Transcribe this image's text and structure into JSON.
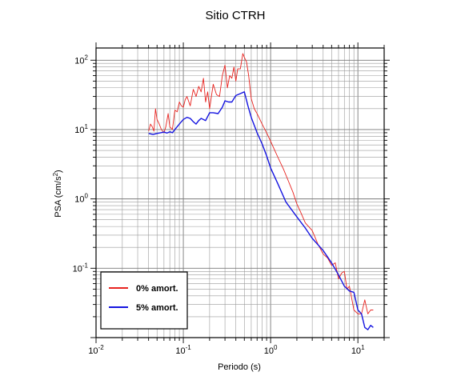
{
  "chart_data": {
    "type": "line",
    "title": "Sitio CTRH",
    "xlabel": "Periodo (s)",
    "ylabel_base": "PSA (cm/s",
    "ylabel_exp": "2",
    "ylabel_end": ")",
    "xscale": "log",
    "yscale": "log",
    "xlim": [
      0.01,
      20
    ],
    "ylim": [
      0.01,
      150
    ],
    "grid": true,
    "legend_position": "bottom-left",
    "xticks": [
      {
        "base": "10",
        "exp": "-2",
        "value": 0.01
      },
      {
        "base": "10",
        "exp": "-1",
        "value": 0.1
      },
      {
        "base": "10",
        "exp": "0",
        "value": 1
      },
      {
        "base": "10",
        "exp": "1",
        "value": 10
      }
    ],
    "yticks": [
      {
        "base": "10",
        "exp": "-1",
        "value": 0.1
      },
      {
        "base": "10",
        "exp": "0",
        "value": 1
      },
      {
        "base": "10",
        "exp": "1",
        "value": 10
      },
      {
        "base": "10",
        "exp": "2",
        "value": 100
      }
    ],
    "series": [
      {
        "name": "0% amort.",
        "color": "#e8231f",
        "x": [
          0.04,
          0.042,
          0.044,
          0.046,
          0.048,
          0.05,
          0.053,
          0.056,
          0.06,
          0.063,
          0.067,
          0.07,
          0.075,
          0.08,
          0.085,
          0.09,
          0.095,
          0.1,
          0.105,
          0.11,
          0.12,
          0.13,
          0.14,
          0.15,
          0.16,
          0.17,
          0.18,
          0.19,
          0.2,
          0.22,
          0.24,
          0.26,
          0.28,
          0.3,
          0.32,
          0.34,
          0.36,
          0.38,
          0.4,
          0.42,
          0.45,
          0.48,
          0.5,
          0.53,
          0.56,
          0.6,
          0.65,
          0.7,
          0.8,
          0.9,
          1.0,
          1.2,
          1.4,
          1.6,
          1.8,
          2.0,
          2.2,
          2.5,
          3.0,
          3.5,
          4.0,
          4.5,
          5.0,
          5.5,
          6.0,
          6.5,
          7.0,
          7.5,
          8.0,
          9.0,
          10.0,
          11.0,
          12.0,
          13.0,
          14.0,
          15.0
        ],
        "y": [
          9.5,
          12,
          11,
          9.5,
          20,
          14,
          12,
          10,
          9,
          11,
          17,
          11,
          10,
          19,
          18,
          25,
          22,
          21,
          27,
          30,
          22,
          38,
          30,
          42,
          35,
          55,
          25,
          35,
          20,
          45,
          32,
          30,
          60,
          85,
          40,
          60,
          55,
          80,
          50,
          75,
          75,
          125,
          110,
          95,
          60,
          28,
          20,
          17,
          12,
          9,
          6.8,
          4.1,
          2.7,
          1.8,
          1.25,
          0.85,
          0.65,
          0.45,
          0.35,
          0.22,
          0.16,
          0.14,
          0.11,
          0.12,
          0.07,
          0.085,
          0.09,
          0.05,
          0.055,
          0.025,
          0.022,
          0.022,
          0.035,
          0.022,
          0.025,
          0.025
        ]
      },
      {
        "name": "5% amort.",
        "color": "#1515e0",
        "x": [
          0.04,
          0.045,
          0.05,
          0.055,
          0.06,
          0.065,
          0.07,
          0.075,
          0.08,
          0.09,
          0.1,
          0.11,
          0.12,
          0.13,
          0.14,
          0.15,
          0.16,
          0.18,
          0.2,
          0.22,
          0.25,
          0.28,
          0.3,
          0.33,
          0.36,
          0.4,
          0.45,
          0.5,
          0.55,
          0.6,
          0.7,
          0.8,
          0.9,
          1.0,
          1.2,
          1.5,
          2.0,
          2.5,
          3.0,
          4.0,
          5.0,
          6.0,
          7.0,
          8.0,
          9.0,
          10.0,
          11.0,
          12.0,
          13.0,
          14.0,
          15.0
        ],
        "y": [
          8.8,
          8.5,
          8.8,
          9.0,
          9.2,
          8.9,
          9.3,
          9.0,
          10.0,
          12.0,
          14.0,
          15.0,
          14.5,
          13.0,
          12.0,
          13.5,
          14.5,
          13.5,
          17.5,
          17.5,
          17.0,
          21.0,
          26.0,
          25.0,
          25.0,
          31.0,
          33.0,
          35.0,
          22.0,
          15.0,
          9.0,
          6.2,
          4.2,
          2.8,
          1.7,
          0.9,
          0.55,
          0.38,
          0.27,
          0.18,
          0.12,
          0.08,
          0.055,
          0.047,
          0.045,
          0.025,
          0.022,
          0.014,
          0.013,
          0.015,
          0.014
        ]
      }
    ]
  }
}
